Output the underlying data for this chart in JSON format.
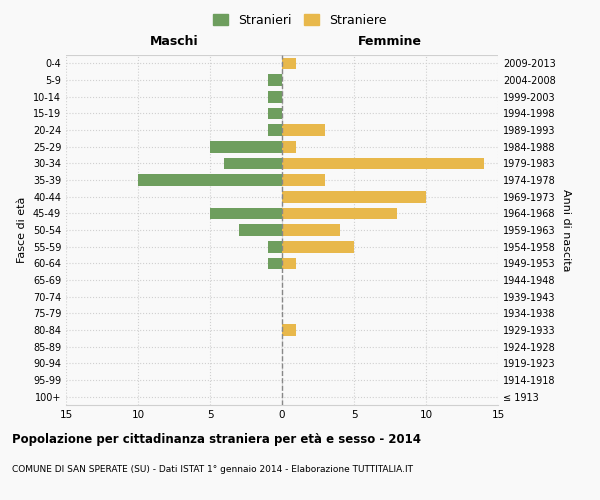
{
  "age_groups": [
    "100+",
    "95-99",
    "90-94",
    "85-89",
    "80-84",
    "75-79",
    "70-74",
    "65-69",
    "60-64",
    "55-59",
    "50-54",
    "45-49",
    "40-44",
    "35-39",
    "30-34",
    "25-29",
    "20-24",
    "15-19",
    "10-14",
    "5-9",
    "0-4"
  ],
  "birth_years": [
    "≤ 1913",
    "1914-1918",
    "1919-1923",
    "1924-1928",
    "1929-1933",
    "1934-1938",
    "1939-1943",
    "1944-1948",
    "1949-1953",
    "1954-1958",
    "1959-1963",
    "1964-1968",
    "1969-1973",
    "1974-1978",
    "1979-1983",
    "1984-1988",
    "1989-1993",
    "1994-1998",
    "1999-2003",
    "2004-2008",
    "2009-2013"
  ],
  "males": [
    0,
    0,
    0,
    0,
    0,
    0,
    0,
    0,
    1,
    1,
    3,
    5,
    0,
    10,
    4,
    5,
    1,
    1,
    1,
    1,
    0
  ],
  "females": [
    0,
    0,
    0,
    0,
    1,
    0,
    0,
    0,
    1,
    5,
    4,
    8,
    10,
    3,
    14,
    1,
    3,
    0,
    0,
    0,
    1
  ],
  "male_color": "#6e9e5e",
  "female_color": "#e8b84b",
  "title": "Popolazione per cittadinanza straniera per età e sesso - 2014",
  "subtitle": "COMUNE DI SAN SPERATE (SU) - Dati ISTAT 1° gennaio 2014 - Elaborazione TUTTITALIA.IT",
  "xlabel_left": "Maschi",
  "xlabel_right": "Femmine",
  "ylabel_left": "Fasce di età",
  "ylabel_right": "Anni di nascita",
  "legend_male": "Stranieri",
  "legend_female": "Straniere",
  "xlim": 15,
  "background_color": "#f9f9f9",
  "grid_color": "#d0d0d0"
}
